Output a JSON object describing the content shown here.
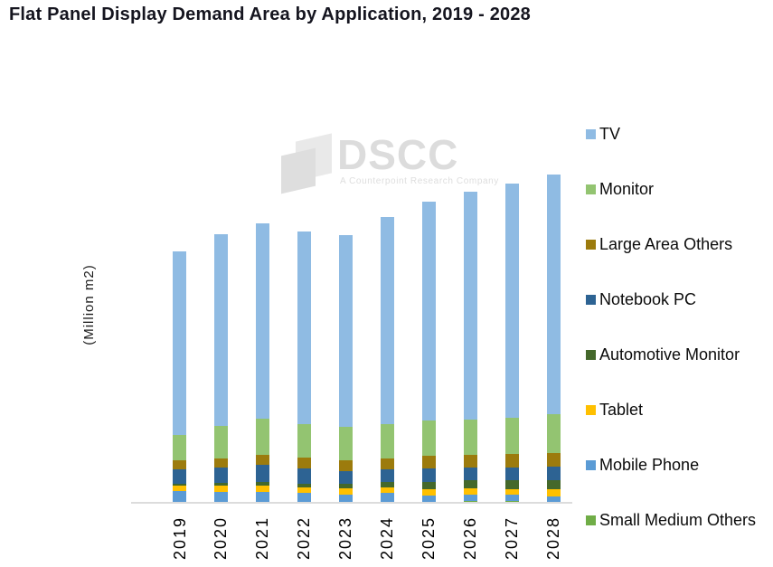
{
  "title": "Flat Panel Display Demand Area by Application, 2019 - 2028",
  "watermark": {
    "text": "DSCC",
    "tagline": "A Counterpoint Research Company"
  },
  "colors": {
    "title_text": "#15151F",
    "axis_line": "#DCDCDC",
    "watermark_gray": "#DCDCDC"
  },
  "chart_data": {
    "type": "bar",
    "stacked": true,
    "title": "Flat Panel Display Demand Area by Application, 2019 - 2028",
    "xlabel": "",
    "ylabel": "(Million m2)",
    "unit": "Million m2",
    "values_estimated": true,
    "y_axis_tick_labels_visible": false,
    "grid": false,
    "legend_position": "right",
    "categories": [
      "2019",
      "2020",
      "2021",
      "2022",
      "2023",
      "2024",
      "2025",
      "2026",
      "2027",
      "2028"
    ],
    "series": [
      {
        "name": "TV",
        "color": "#8FBBE3",
        "values": [
          152,
          159,
          162,
          160,
          159,
          172,
          182,
          189,
          194,
          199
        ]
      },
      {
        "name": "Monitor",
        "color": "#93C471",
        "values": [
          21,
          27,
          29.5,
          27.5,
          27.5,
          28,
          29,
          29,
          30,
          32
        ]
      },
      {
        "name": "Large Area Others",
        "color": "#9C7B0D",
        "values": [
          8,
          8,
          8.5,
          9,
          9,
          9,
          10.5,
          10.5,
          11,
          11.5
        ]
      },
      {
        "name": "Notebook PC",
        "color": "#2D6393",
        "values": [
          12,
          12.5,
          14,
          13,
          10.5,
          11,
          11,
          10.5,
          10.5,
          11.5
        ]
      },
      {
        "name": "Automotive Monitor",
        "color": "#44682B",
        "values": [
          1,
          2,
          3,
          2.5,
          4,
          4.5,
          6.5,
          7,
          7.5,
          7.5
        ]
      },
      {
        "name": "Tablet",
        "color": "#FFC000",
        "values": [
          4.5,
          5.5,
          5.5,
          4.5,
          5,
          4.5,
          5,
          5,
          5,
          5.5
        ]
      },
      {
        "name": "Mobile Phone",
        "color": "#5B9BD5",
        "values": [
          9,
          8,
          8,
          7.5,
          6.5,
          7,
          5,
          5.5,
          5,
          4.5
        ]
      },
      {
        "name": "Small Medium Others",
        "color": "#70AD47",
        "values": [
          1,
          1,
          1,
          1,
          0.5,
          1,
          1,
          1.5,
          1.5,
          1
        ]
      }
    ],
    "stack_order_bottom_to_top": [
      "Small Medium Others",
      "Mobile Phone",
      "Tablet",
      "Automotive Monitor",
      "Notebook PC",
      "Large Area Others",
      "Monitor",
      "TV"
    ],
    "totals": [
      208.5,
      223,
      231.5,
      225,
      222,
      237,
      250,
      258,
      264.5,
      272.5
    ]
  }
}
